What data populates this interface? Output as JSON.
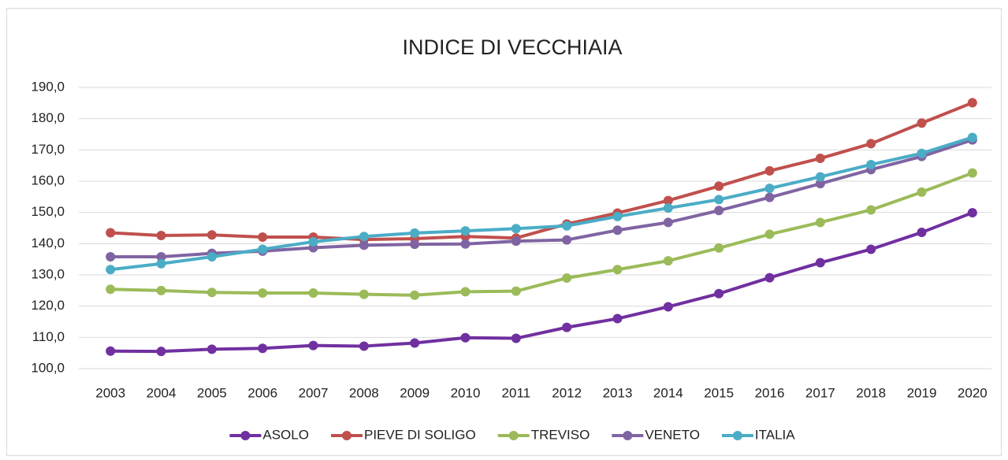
{
  "chart_data": {
    "type": "line",
    "title": "INDICE DI VECCHIAIA",
    "categories": [
      "2003",
      "2004",
      "2005",
      "2006",
      "2007",
      "2008",
      "2009",
      "2010",
      "2011",
      "2012",
      "2013",
      "2014",
      "2015",
      "2016",
      "2017",
      "2018",
      "2019",
      "2020"
    ],
    "series": [
      {
        "name": "ASOLO",
        "color": "#7030a0",
        "values": [
          105.6,
          105.5,
          106.2,
          106.5,
          107.4,
          107.2,
          108.2,
          109.9,
          109.7,
          113.2,
          116.0,
          119.8,
          124.0,
          129.1,
          133.9,
          138.2,
          143.6,
          149.9
        ]
      },
      {
        "name": "PIEVE DI SOLIGO",
        "color": "#c0504d",
        "values": [
          143.5,
          142.6,
          142.8,
          142.1,
          142.1,
          141.3,
          141.6,
          142.3,
          141.8,
          146.3,
          149.8,
          153.8,
          158.4,
          163.3,
          167.3,
          172.0,
          178.6,
          185.1
        ]
      },
      {
        "name": "TREVISO",
        "color": "#9bbb59",
        "values": [
          125.4,
          125.0,
          124.4,
          124.2,
          124.2,
          123.8,
          123.5,
          124.6,
          124.8,
          129.0,
          131.7,
          134.5,
          138.6,
          143.0,
          146.8,
          150.8,
          156.5,
          162.6
        ]
      },
      {
        "name": "VENETO",
        "color": "#8064a2",
        "values": [
          135.8,
          135.8,
          136.9,
          137.6,
          138.7,
          139.5,
          139.8,
          139.9,
          140.8,
          141.2,
          144.3,
          146.8,
          150.6,
          154.8,
          159.2,
          163.7,
          167.9,
          173.2
        ]
      },
      {
        "name": "ITALIA",
        "color": "#4bacc6",
        "values": [
          131.7,
          133.6,
          135.8,
          138.2,
          140.6,
          142.3,
          143.4,
          144.1,
          144.8,
          145.7,
          148.7,
          151.4,
          154.1,
          157.7,
          161.4,
          165.3,
          168.9,
          174.0
        ]
      }
    ],
    "ylim": [
      100,
      190
    ],
    "yticks": [
      {
        "value": 100,
        "label": "100,0"
      },
      {
        "value": 110,
        "label": "110,0"
      },
      {
        "value": 120,
        "label": "120,0"
      },
      {
        "value": 130,
        "label": "130,0"
      },
      {
        "value": 140,
        "label": "140,0"
      },
      {
        "value": 150,
        "label": "150,0"
      },
      {
        "value": 160,
        "label": "160,0"
      },
      {
        "value": 170,
        "label": "170,0"
      },
      {
        "value": 180,
        "label": "180,0"
      },
      {
        "value": 190,
        "label": "190,0"
      }
    ],
    "grid": true,
    "legend": "bottom"
  }
}
